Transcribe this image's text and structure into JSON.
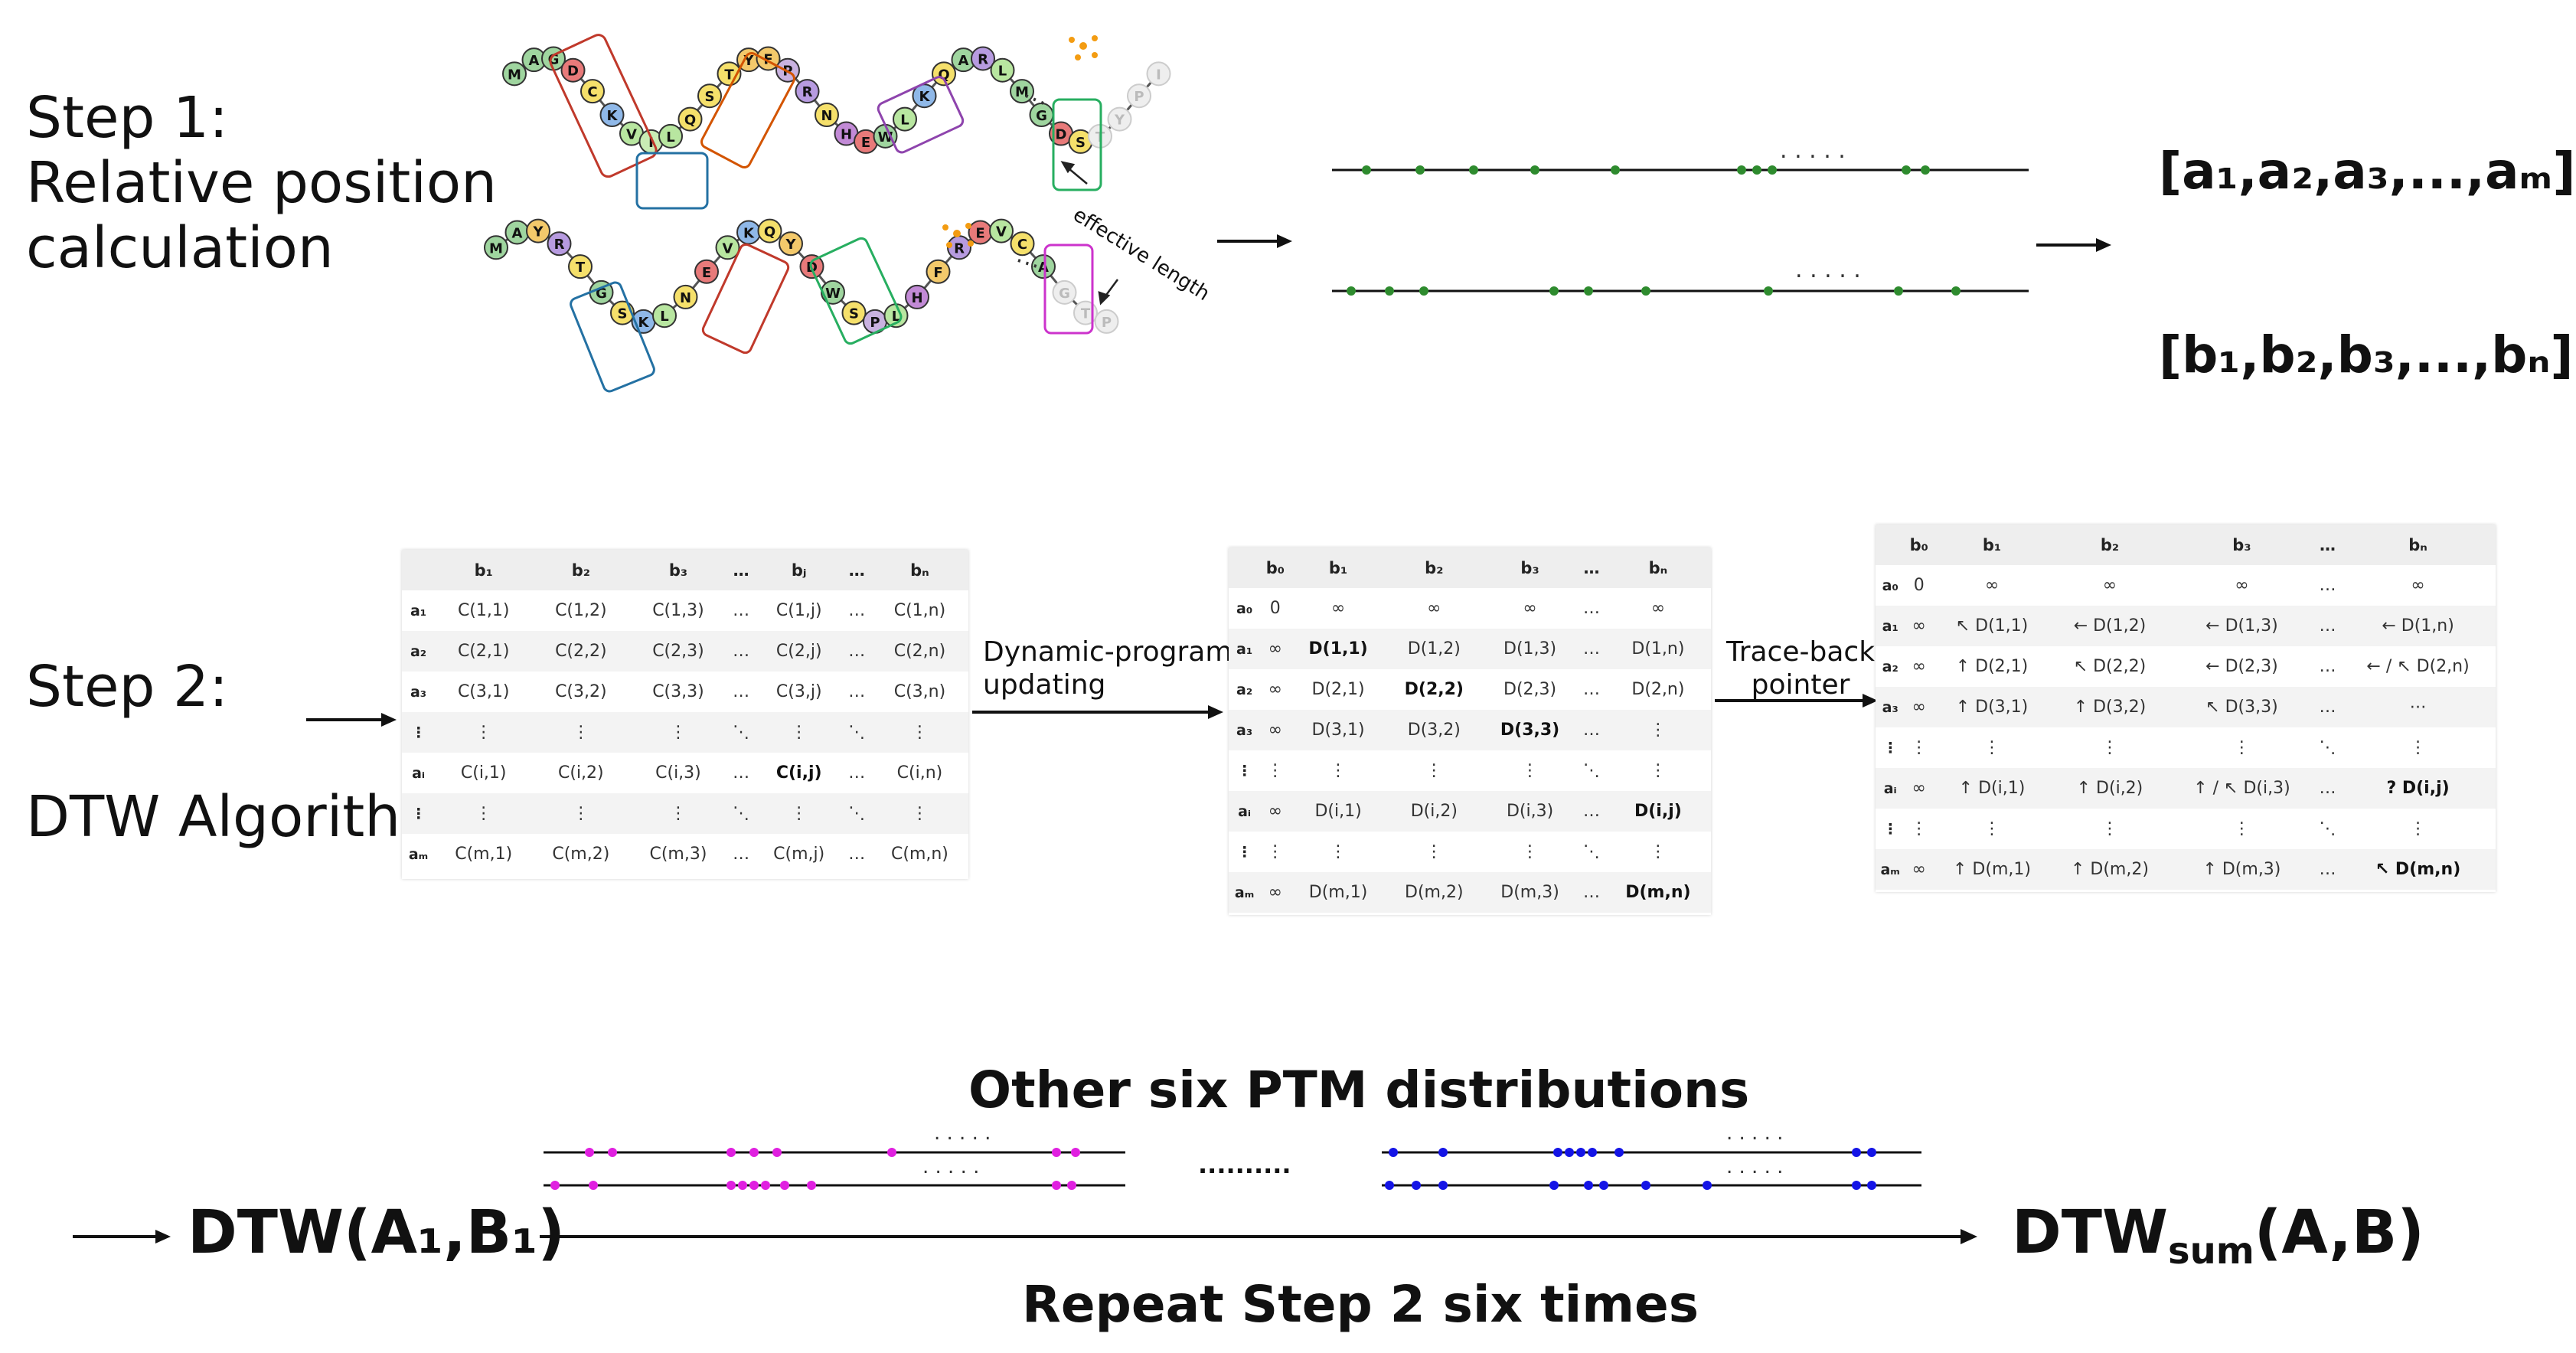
{
  "step1": {
    "title_line1": "Step 1:",
    "title_line2": "Relative position",
    "title_line3": "calculation"
  },
  "step2": {
    "title_line1": "Step 2:",
    "title_line2": "DTW Algorithm"
  },
  "protein": {
    "top_residues": [
      "M",
      "A",
      "G",
      "D",
      "C",
      "K",
      "V",
      "I",
      "L",
      "Q",
      "S",
      "T",
      "Y",
      "F",
      "P",
      "R",
      "N",
      "H",
      "E",
      "W",
      "L",
      "K",
      "Q",
      "A",
      "R",
      "L",
      "M",
      "G",
      "D",
      "S",
      "T",
      "Y",
      "P",
      "I"
    ],
    "bottom_residues": [
      "M",
      "A",
      "Y",
      "R",
      "T",
      "G",
      "S",
      "K",
      "L",
      "N",
      "E",
      "V",
      "K",
      "Q",
      "Y",
      "D",
      "W",
      "S",
      "P",
      "L",
      "H",
      "F",
      "R",
      "E",
      "V",
      "C",
      "A",
      "G",
      "T",
      "P"
    ],
    "effective_length_label": "effective length"
  },
  "vectors": {
    "a": "[a₁,a₂,a₃,...,aₘ]",
    "b": "[b₁,b₂,b₃,...,bₙ]"
  },
  "ellipsis_small": ". . . . .",
  "arrow_labels": {
    "dp_line1": "Dynamic-program",
    "dp_line2": "updating",
    "tb_line1": "Trace-back",
    "tb_line2": "pointer"
  },
  "table1": {
    "header": [
      "",
      "b₁",
      "b₂",
      "b₃",
      "…",
      "bⱼ",
      "…",
      "bₙ"
    ],
    "rows": [
      [
        "a₁",
        "C(1,1)",
        "C(1,2)",
        "C(1,3)",
        "…",
        "C(1,j)",
        "…",
        "C(1,n)"
      ],
      [
        "a₂",
        "C(2,1)",
        "C(2,2)",
        "C(2,3)",
        "…",
        "C(2,j)",
        "…",
        "C(2,n)"
      ],
      [
        "a₃",
        "C(3,1)",
        "C(3,2)",
        "C(3,3)",
        "…",
        "C(3,j)",
        "…",
        "C(3,n)"
      ],
      [
        "⋮",
        "⋮",
        "⋮",
        "⋮",
        "⋱",
        "⋮",
        "⋱",
        "⋮"
      ],
      [
        "aᵢ",
        "C(i,1)",
        "C(i,2)",
        "C(i,3)",
        "…",
        "C(i,j)",
        "…",
        "C(i,n)"
      ],
      [
        "⋮",
        "⋮",
        "⋮",
        "⋮",
        "⋱",
        "⋮",
        "⋱",
        "⋮"
      ],
      [
        "aₘ",
        "C(m,1)",
        "C(m,2)",
        "C(m,3)",
        "…",
        "C(m,j)",
        "…",
        "C(m,n)"
      ]
    ]
  },
  "table2": {
    "header": [
      "",
      "b₀",
      "b₁",
      "b₂",
      "b₃",
      "…",
      "bₙ"
    ],
    "rows": [
      [
        "a₀",
        "0",
        "∞",
        "∞",
        "∞",
        "…",
        "∞"
      ],
      [
        "a₁",
        "∞",
        "D(1,1)",
        "D(1,2)",
        "D(1,3)",
        "…",
        "D(1,n)"
      ],
      [
        "a₂",
        "∞",
        "D(2,1)",
        "D(2,2)",
        "D(2,3)",
        "…",
        "D(2,n)"
      ],
      [
        "a₃",
        "∞",
        "D(3,1)",
        "D(3,2)",
        "D(3,3)",
        "…",
        "⋮"
      ],
      [
        "⋮",
        "⋮",
        "⋮",
        "⋮",
        "⋮",
        "⋱",
        "⋮"
      ],
      [
        "aᵢ",
        "∞",
        "D(i,1)",
        "D(i,2)",
        "D(i,3)",
        "…",
        "D(i,j)"
      ],
      [
        "⋮",
        "⋮",
        "⋮",
        "⋮",
        "⋮",
        "⋱",
        "⋮"
      ],
      [
        "aₘ",
        "∞",
        "D(m,1)",
        "D(m,2)",
        "D(m,3)",
        "…",
        "D(m,n)"
      ]
    ]
  },
  "table3": {
    "header": [
      "",
      "b₀",
      "b₁",
      "b₂",
      "b₃",
      "…",
      "bₙ"
    ],
    "rows": [
      [
        "a₀",
        "0",
        "∞",
        "∞",
        "∞",
        "…",
        "∞"
      ],
      [
        "a₁",
        "∞",
        "↖ D(1,1)",
        "← D(1,2)",
        "← D(1,3)",
        "…",
        "← D(1,n)"
      ],
      [
        "a₂",
        "∞",
        "↑ D(2,1)",
        "↖ D(2,2)",
        "← D(2,3)",
        "…",
        "← / ↖ D(2,n)"
      ],
      [
        "a₃",
        "∞",
        "↑ D(3,1)",
        "↑ D(3,2)",
        "↖ D(3,3)",
        "…",
        "⋯"
      ],
      [
        "⋮",
        "⋮",
        "⋮",
        "⋮",
        "⋮",
        "⋱",
        "⋮"
      ],
      [
        "aᵢ",
        "∞",
        "↑ D(i,1)",
        "↑ D(i,2)",
        "↑ / ↖ D(i,3)",
        "…",
        "? D(i,j)"
      ],
      [
        "⋮",
        "⋮",
        "⋮",
        "⋮",
        "⋮",
        "⋱",
        "⋮"
      ],
      [
        "aₘ",
        "∞",
        "↑ D(m,1)",
        "↑ D(m,2)",
        "↑ D(m,3)",
        "…",
        "↖ D(m,n)"
      ]
    ]
  },
  "step3": {
    "other_label": "Other six PTM distributions",
    "repeat_label": "Repeat Step 2 six times",
    "dtw_left": "DTW(A₁,B₁)",
    "dtw_right_main": "DTW",
    "dtw_right_sub": "sum",
    "dtw_right_args": "(A,B)",
    "ellipsis_mid": "..........",
    "colors": {
      "green": "#2e8b2e",
      "magenta": "#e020e0",
      "blue": "#1414e6"
    }
  }
}
